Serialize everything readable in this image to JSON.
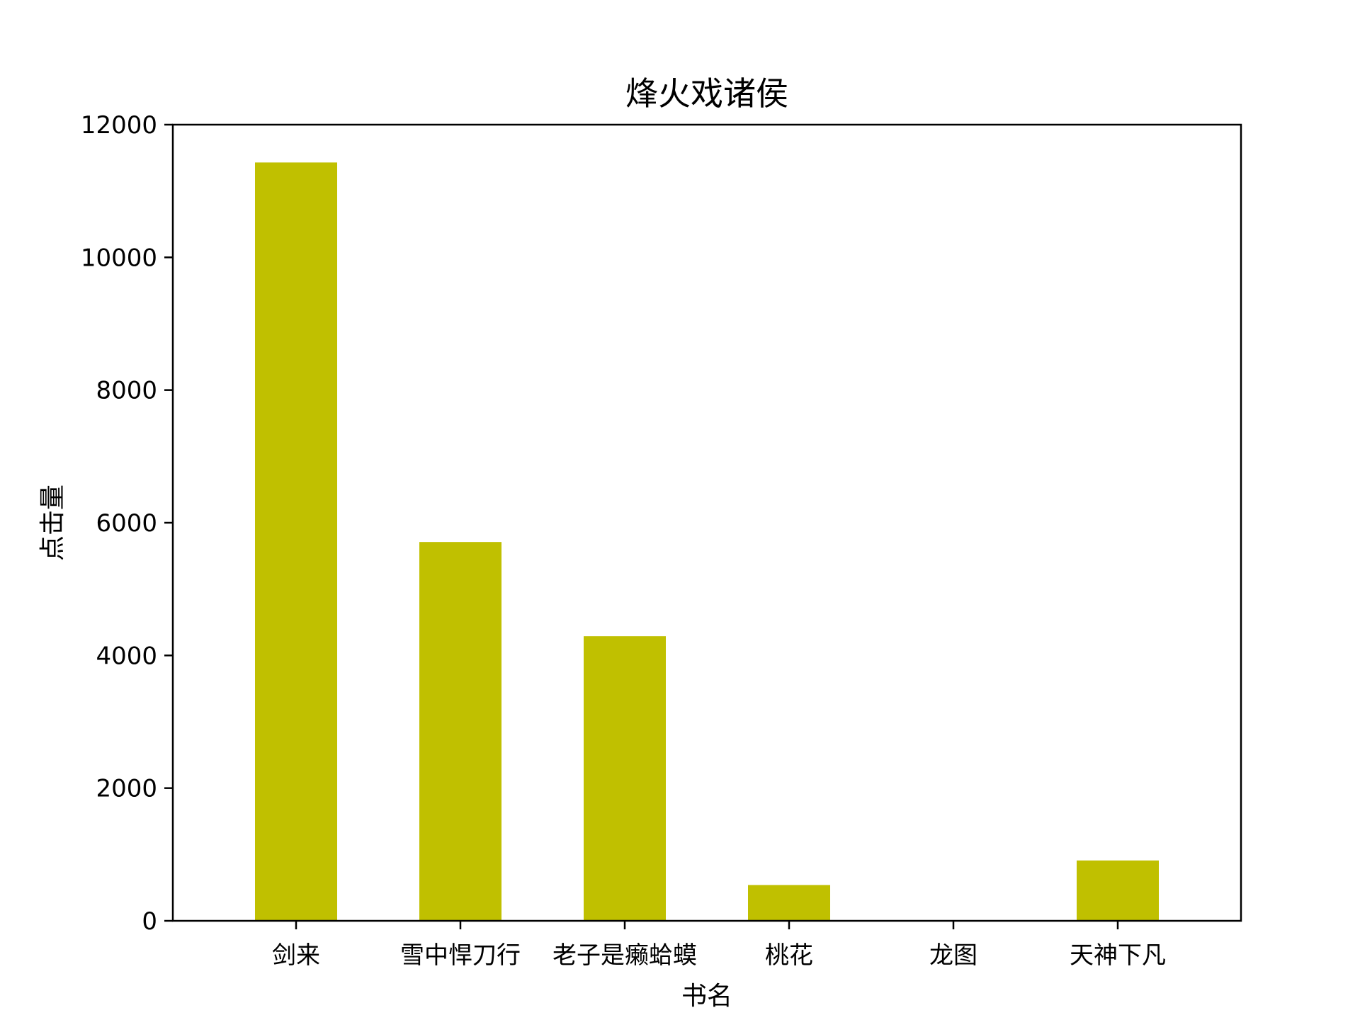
{
  "chart_data": {
    "type": "bar",
    "title": "烽火戏诸侯",
    "xlabel": "书名",
    "ylabel": "点击量",
    "categories": [
      "剑来",
      "雪中悍刀行",
      "老子是癞蛤蟆",
      "桃花",
      "龙图",
      "天神下凡"
    ],
    "values": [
      11430,
      5710,
      4290,
      540,
      0,
      910
    ],
    "ylim": [
      0,
      12000
    ],
    "yticks": [
      0,
      2000,
      4000,
      6000,
      8000,
      10000,
      12000
    ],
    "bar_color": "#c0c000",
    "grid": false,
    "legend": "none"
  }
}
